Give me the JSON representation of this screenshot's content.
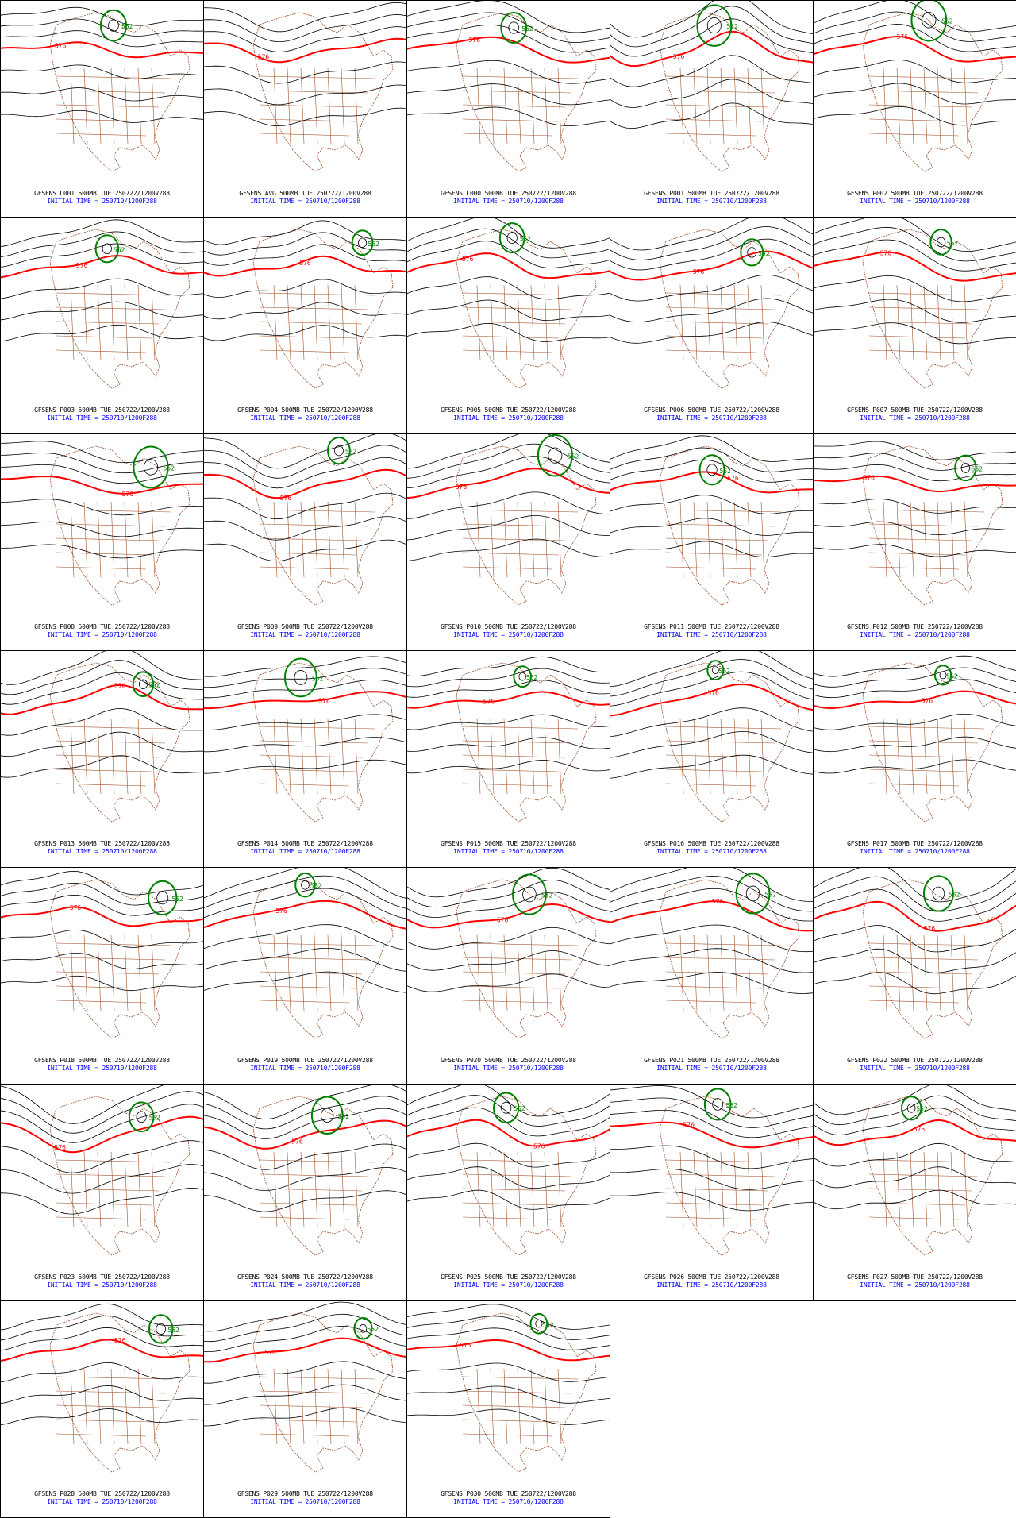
{
  "panels": [
    {
      "id_line": "GFSENS C001 500MB TUE 250722/1200V288",
      "time_line": "INITIAL TIME = 250710/1200F288",
      "contour_labels": [
        "576",
        "552"
      ]
    },
    {
      "id_line": "GFSENS AVG 500MB TUE 250722/1200V288",
      "time_line": "INITIAL TIME = 250710/1200F288",
      "contour_labels": [
        "576"
      ]
    },
    {
      "id_line": "GFSENS C000 500MB TUE 250722/1200V288",
      "time_line": "INITIAL TIME = 250710/1200F288",
      "contour_labels": [
        "576",
        "552"
      ]
    },
    {
      "id_line": "GFSENS P001 500MB TUE 250722/1200V288",
      "time_line": "INITIAL TIME = 250710/1200F288",
      "contour_labels": [
        "576",
        "552"
      ]
    },
    {
      "id_line": "GFSENS P002 500MB TUE 250722/1200V288",
      "time_line": "INITIAL TIME = 250710/1200F288",
      "contour_labels": [
        "576",
        "552"
      ]
    },
    {
      "id_line": "GFSENS P003 500MB TUE 250722/1200V288",
      "time_line": "INITIAL TIME = 250710/1200F288",
      "contour_labels": [
        "576",
        "552"
      ]
    },
    {
      "id_line": "GFSENS P004 500MB TUE 250722/1200V288",
      "time_line": "INITIAL TIME = 250710/1200F288",
      "contour_labels": [
        "576",
        "552"
      ]
    },
    {
      "id_line": "GFSENS P005 500MB TUE 250722/1200V288",
      "time_line": "INITIAL TIME = 250710/1200F288",
      "contour_labels": [
        "576",
        "552"
      ]
    },
    {
      "id_line": "GFSENS P006 500MB TUE 250722/1200V288",
      "time_line": "INITIAL TIME = 250710/1200F288",
      "contour_labels": [
        "576",
        "552"
      ]
    },
    {
      "id_line": "GFSENS P007 500MB TUE 250722/1200V288",
      "time_line": "INITIAL TIME = 250710/1200F288",
      "contour_labels": [
        "576",
        "552"
      ]
    },
    {
      "id_line": "GFSENS P008 500MB TUE 250722/1200V288",
      "time_line": "INITIAL TIME = 250710/1200F288",
      "contour_labels": [
        "576",
        "552"
      ]
    },
    {
      "id_line": "GFSENS P009 500MB TUE 250722/1200V288",
      "time_line": "INITIAL TIME = 250710/1200F288",
      "contour_labels": [
        "576",
        "552"
      ]
    },
    {
      "id_line": "GFSENS P010 500MB TUE 250722/1200V288",
      "time_line": "INITIAL TIME = 250710/1200F288",
      "contour_labels": [
        "576",
        "552"
      ]
    },
    {
      "id_line": "GFSENS P011 500MB TUE 250722/1200V288",
      "time_line": "INITIAL TIME = 250710/1200F288",
      "contour_labels": [
        "576",
        "552"
      ]
    },
    {
      "id_line": "GFSENS P012 500MB TUE 250722/1200V288",
      "time_line": "INITIAL TIME = 250710/1200F288",
      "contour_labels": [
        "576",
        "552"
      ]
    },
    {
      "id_line": "GFSENS P013 500MB TUE 250722/1200V288",
      "time_line": "INITIAL TIME = 250710/1200F288",
      "contour_labels": [
        "576",
        "552"
      ]
    },
    {
      "id_line": "GFSENS P014 500MB TUE 250722/1200V288",
      "time_line": "INITIAL TIME = 250710/1200F288",
      "contour_labels": [
        "576",
        "552"
      ]
    },
    {
      "id_line": "GFSENS P015 500MB TUE 250722/1200V288",
      "time_line": "INITIAL TIME = 250710/1200F288",
      "contour_labels": [
        "576",
        "552"
      ]
    },
    {
      "id_line": "GFSENS P016 500MB TUE 250722/1200V288",
      "time_line": "INITIAL TIME = 250710/1200F288",
      "contour_labels": [
        "576",
        "552"
      ]
    },
    {
      "id_line": "GFSENS P017 500MB TUE 250722/1200V288",
      "time_line": "INITIAL TIME = 250710/1200F288",
      "contour_labels": [
        "576",
        "552"
      ]
    },
    {
      "id_line": "GFSENS P018 500MB TUE 250722/1200V288",
      "time_line": "INITIAL TIME = 250710/1200F288",
      "contour_labels": [
        "576",
        "552"
      ]
    },
    {
      "id_line": "GFSENS P019 500MB TUE 250722/1200V288",
      "time_line": "INITIAL TIME = 250710/1200F288",
      "contour_labels": [
        "576",
        "552"
      ]
    },
    {
      "id_line": "GFSENS P020 500MB TUE 250722/1200V288",
      "time_line": "INITIAL TIME = 250710/1200F288",
      "contour_labels": [
        "576",
        "552"
      ]
    },
    {
      "id_line": "GFSENS P021 500MB TUE 250722/1200V288",
      "time_line": "INITIAL TIME = 250710/1200F288",
      "contour_labels": [
        "576",
        "552"
      ]
    },
    {
      "id_line": "GFSENS P022 500MB TUE 250722/1200V288",
      "time_line": "INITIAL TIME = 250710/1200F288",
      "contour_labels": [
        "576",
        "552"
      ]
    },
    {
      "id_line": "GFSENS P023 500MB TUE 250722/1200V288",
      "time_line": "INITIAL TIME = 250710/1200F288",
      "contour_labels": [
        "576",
        "552"
      ]
    },
    {
      "id_line": "GFSENS P024 500MB TUE 250722/1200V288",
      "time_line": "INITIAL TIME = 250710/1200F288",
      "contour_labels": [
        "576",
        "552"
      ]
    },
    {
      "id_line": "GFSENS P025 500MB TUE 250722/1200V288",
      "time_line": "INITIAL TIME = 250710/1200F288",
      "contour_labels": [
        "576",
        "552"
      ]
    },
    {
      "id_line": "GFSENS P026 500MB TUE 250722/1200V288",
      "time_line": "INITIAL TIME = 250710/1200F288",
      "contour_labels": [
        "576",
        "552"
      ]
    },
    {
      "id_line": "GFSENS P027 500MB TUE 250722/1200V288",
      "time_line": "INITIAL TIME = 250710/1200F288",
      "contour_labels": [
        "576",
        "552"
      ]
    },
    {
      "id_line": "GFSENS P028 500MB TUE 250722/1200V288",
      "time_line": "INITIAL TIME = 250710/1200F288",
      "contour_labels": [
        "576",
        "552"
      ]
    },
    {
      "id_line": "GFSENS P029 500MB TUE 250722/1200V288",
      "time_line": "INITIAL TIME = 250710/1200F288",
      "contour_labels": [
        "576",
        "552"
      ]
    },
    {
      "id_line": "GFSENS P030 500MB TUE 250722/1200V288",
      "time_line": "INITIAL TIME = 250710/1200F288",
      "contour_labels": [
        "576",
        "552"
      ]
    }
  ]
}
